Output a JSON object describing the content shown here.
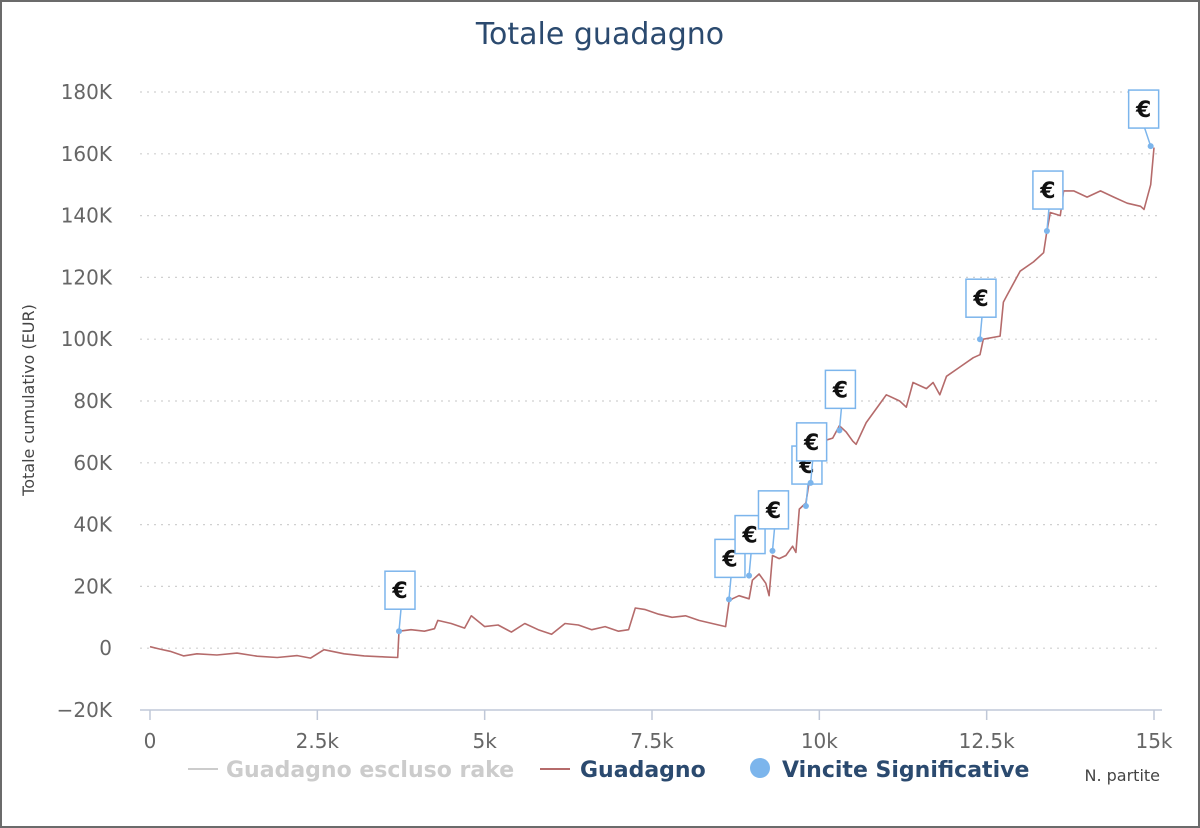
{
  "chart_data": {
    "type": "line",
    "title": "Totale guadagno",
    "ylabel": "Totale cumulativo (EUR)",
    "xlabel": "N. partite",
    "xlim": [
      0,
      15000
    ],
    "ylim": [
      -20000,
      180000
    ],
    "x_ticks": [
      0,
      2500,
      5000,
      7500,
      10000,
      12500,
      15000
    ],
    "x_tick_labels": [
      "0",
      "2.5k",
      "5k",
      "7.5k",
      "10k",
      "12.5k",
      "15k"
    ],
    "y_ticks": [
      -20000,
      0,
      20000,
      40000,
      60000,
      80000,
      100000,
      120000,
      140000,
      160000,
      180000
    ],
    "y_tick_labels": [
      "−20K",
      "0",
      "20K",
      "40K",
      "60K",
      "80K",
      "100K",
      "120K",
      "140K",
      "160K",
      "180K"
    ],
    "grid": true,
    "legend_position": "bottom",
    "series": [
      {
        "name": "Guadagno escluso rake",
        "color": "#cccccc",
        "visible": false,
        "x": [],
        "y": []
      },
      {
        "name": "Guadagno",
        "color": "#b56b6b",
        "x": [
          0,
          150,
          300,
          500,
          700,
          1000,
          1300,
          1600,
          1900,
          2200,
          2400,
          2600,
          2900,
          3200,
          3500,
          3700,
          3720,
          3900,
          4100,
          4250,
          4300,
          4500,
          4700,
          4800,
          5000,
          5200,
          5400,
          5600,
          5800,
          6000,
          6200,
          6400,
          6600,
          6800,
          7000,
          7150,
          7250,
          7400,
          7600,
          7800,
          8000,
          8200,
          8400,
          8600,
          8650,
          8700,
          8800,
          8950,
          9000,
          9100,
          9200,
          9250,
          9300,
          9400,
          9500,
          9600,
          9650,
          9700,
          9800,
          9850,
          9900,
          10000,
          10050,
          10200,
          10300,
          10400,
          10500,
          10550,
          10700,
          10800,
          10900,
          11000,
          11200,
          11300,
          11400,
          11600,
          11700,
          11800,
          11900,
          12100,
          12300,
          12400,
          12450,
          12700,
          12750,
          12800,
          13000,
          13200,
          13350,
          13400,
          13450,
          13600,
          13650,
          13800,
          14000,
          14200,
          14400,
          14600,
          14800,
          14850,
          14950,
          15000
        ],
        "y": [
          500,
          -300,
          -1000,
          -2500,
          -1800,
          -2200,
          -1600,
          -2600,
          -3000,
          -2400,
          -3200,
          -500,
          -1800,
          -2500,
          -2800,
          -3000,
          5500,
          6000,
          5500,
          6300,
          9000,
          8000,
          6500,
          10500,
          7000,
          7500,
          5200,
          8000,
          6000,
          4500,
          8000,
          7500,
          6000,
          7000,
          5500,
          6000,
          13000,
          12500,
          11000,
          10000,
          10500,
          9000,
          8000,
          7000,
          15000,
          16000,
          17000,
          16000,
          22000,
          24000,
          21000,
          17000,
          30000,
          29000,
          30000,
          33000,
          31000,
          45000,
          47000,
          54000,
          57000,
          60000,
          67000,
          68000,
          72000,
          70000,
          67000,
          66000,
          73000,
          76000,
          79000,
          82000,
          80000,
          78000,
          86000,
          84000,
          86000,
          82000,
          88000,
          91000,
          94000,
          95000,
          100000,
          101000,
          112000,
          114000,
          122000,
          125000,
          128000,
          135000,
          141000,
          140000,
          148000,
          148000,
          146000,
          148000,
          146000,
          144000,
          143000,
          142000,
          150000,
          162000
        ]
      }
    ],
    "markers": {
      "name": "Vincite Significative",
      "color": "#7cb5ec",
      "label": "€",
      "points": [
        {
          "x": 3720,
          "y": 5500
        },
        {
          "x": 8650,
          "y": 15800
        },
        {
          "x": 8950,
          "y": 23500
        },
        {
          "x": 9300,
          "y": 31500
        },
        {
          "x": 9800,
          "y": 46000
        },
        {
          "x": 9870,
          "y": 53500
        },
        {
          "x": 10300,
          "y": 70500
        },
        {
          "x": 12400,
          "y": 100000
        },
        {
          "x": 13400,
          "y": 135000
        },
        {
          "x": 14950,
          "y": 162500
        }
      ]
    }
  }
}
